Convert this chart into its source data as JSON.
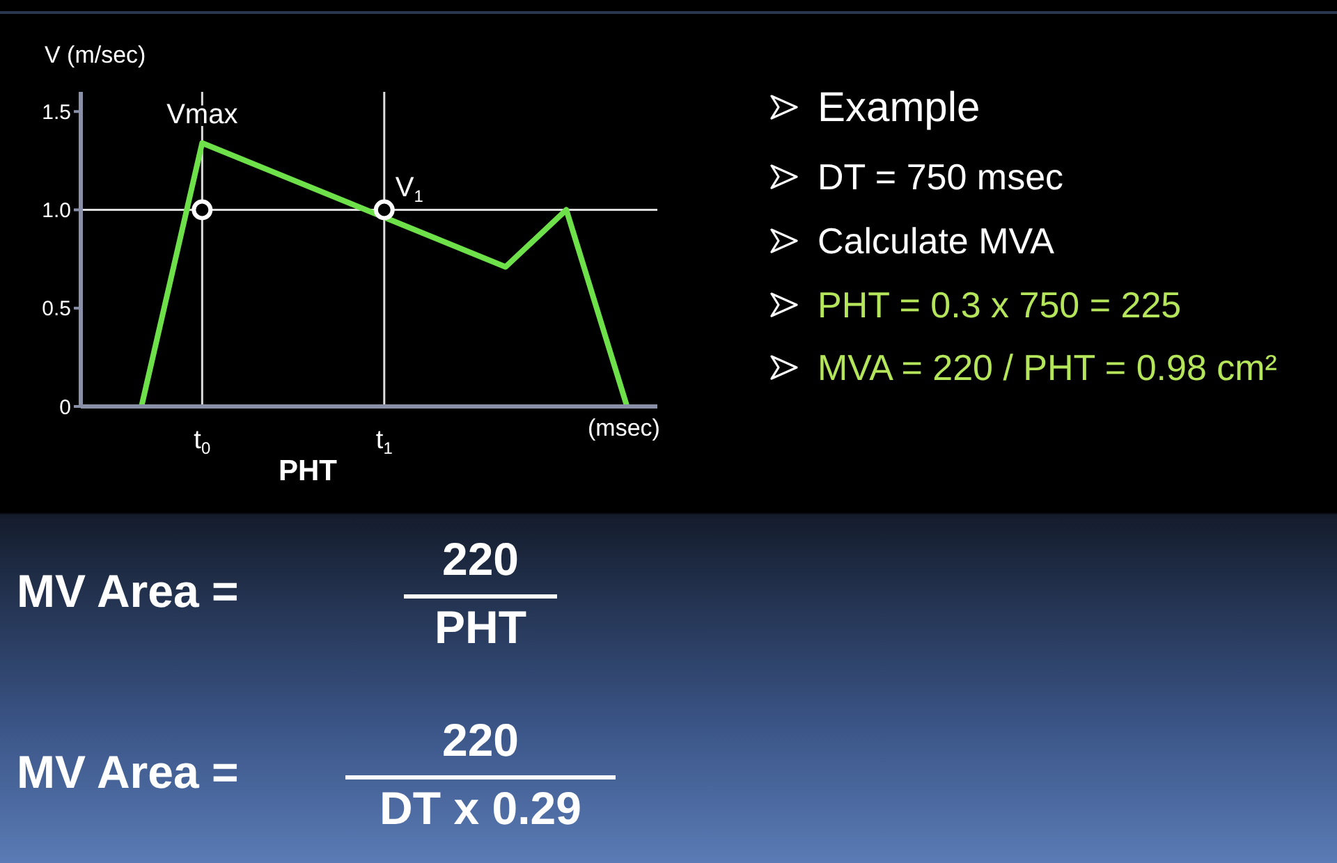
{
  "chart_data": {
    "type": "line",
    "ylabel": "V (m/sec)",
    "xlabel": "(msec)",
    "categories": [
      null,
      null,
      null,
      null,
      "t$_{0}$",
      null,
      null,
      null,
      null,
      null,
      "t$_{1}$",
      null,
      null,
      null,
      null,
      null,
      null,
      null,
      null,
      null
    ],
    "series": [
      {
        "color": "#6ee04a",
        "values": [
          null,
          null,
          0,
          null,
          1.34,
          null,
          null,
          null,
          null,
          null,
          null,
          null,
          null,
          null,
          0.71,
          null,
          1.0,
          null,
          0,
          null
        ]
      },
      {
        "type": "scatter",
        "marker": "circle",
        "color": "#ffffff",
        "values": [
          null,
          null,
          null,
          null,
          1.0,
          null,
          null,
          null,
          null,
          null,
          1.0,
          null,
          null,
          null,
          null,
          null,
          null,
          null,
          null,
          null
        ]
      }
    ],
    "ylim": [
      0,
      1.6
    ],
    "yticks": [
      0,
      0.5,
      {
        "value": 1,
        "label": "1.0"
      },
      1.5
    ],
    "grid": false,
    "legend": false,
    "marker": "none",
    "line_style": "solid",
    "ref_lines": [
      {
        "axis": "y",
        "value": 1,
        "color": "#dddddd"
      },
      {
        "axis": "x",
        "value": "t$_{0}$",
        "color": "#dddddd"
      },
      {
        "axis": "x",
        "value": "t$_{1}$",
        "color": "#dddddd"
      }
    ],
    "annotations": [
      {
        "text": "Vmax",
        "x": "t$_{0}$",
        "y": 1.34
      },
      {
        "text": "V$_{1}$",
        "x": "t$_{1}$",
        "y": 1.0
      },
      "PHT",
      "Example",
      "DT = 750 msec",
      "Calculate MVA",
      "PHT = 0.3 x 750 = 225",
      "MVA = 220 / PHT = 0.98 cm²",
      "MV Area =",
      "220",
      "PHT",
      "MV Area =",
      "220",
      "DT x 0.29"
    ]
  }
}
